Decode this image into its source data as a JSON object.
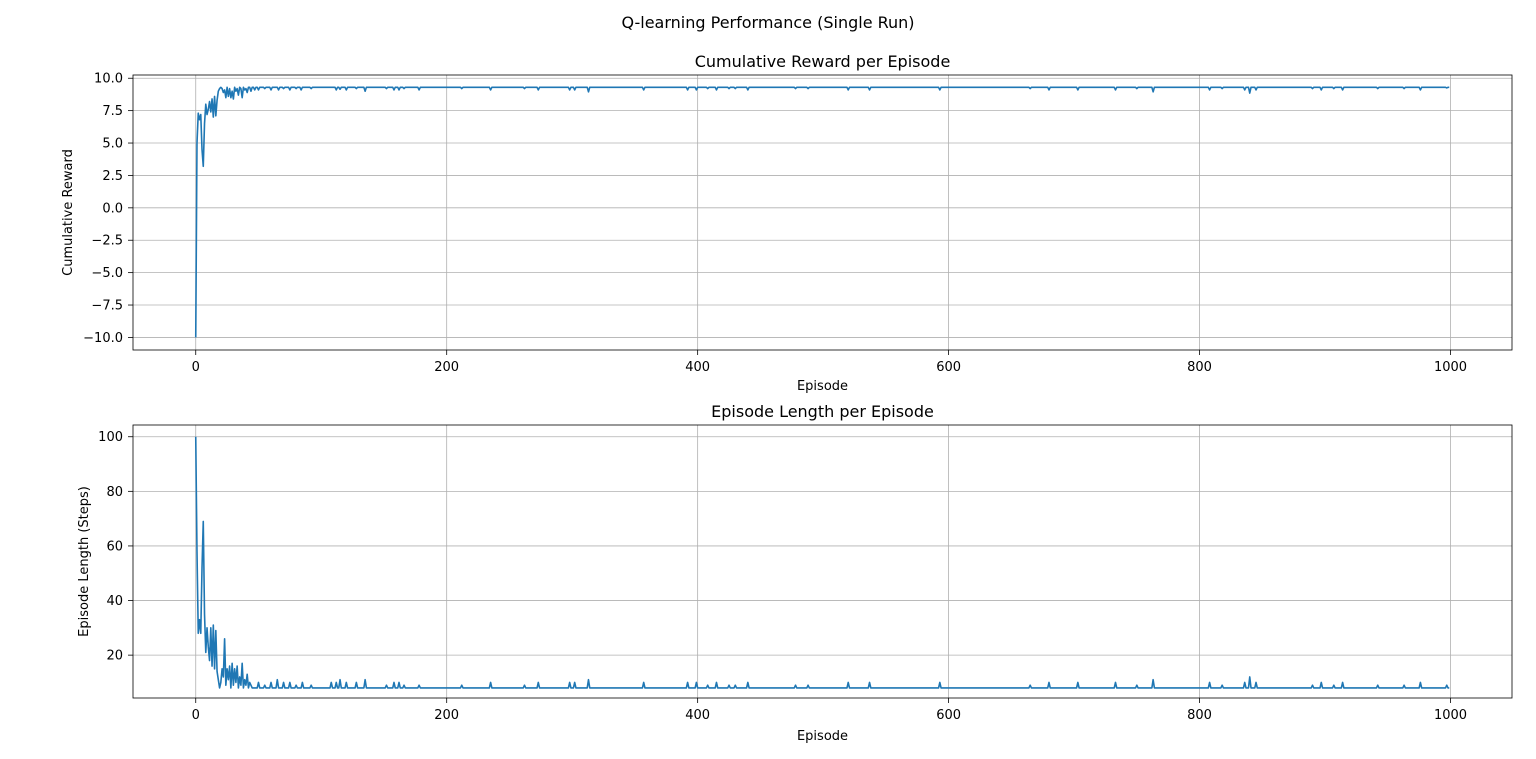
{
  "figure": {
    "suptitle": "Q-learning Performance (Single Run)"
  },
  "chart_data": [
    {
      "type": "line",
      "title": "Cumulative Reward per Episode",
      "xlabel": "Episode",
      "ylabel": "Cumulative Reward",
      "xlim": [
        -50,
        1049
      ],
      "ylim": [
        -10.97,
        10.25
      ],
      "xticks": [
        0,
        200,
        400,
        600,
        800,
        1000
      ],
      "xtick_labels": [
        "0",
        "200",
        "400",
        "600",
        "800",
        "1000"
      ],
      "yticks": [
        10.0,
        7.5,
        5.0,
        2.5,
        0.0,
        -2.5,
        -5.0,
        -7.5,
        -10.0
      ],
      "ytick_labels": [
        "10.0",
        "7.5",
        "5.0",
        "2.5",
        "0.0",
        "−2.5",
        "−5.0",
        "−7.5",
        "−10.0"
      ],
      "grid": true,
      "color": "#1f77b4",
      "series": [
        {
          "baseline": 9.3,
          "points": [
            [
              0,
              -10.0
            ],
            [
              1,
              5.0
            ],
            [
              2,
              7.3
            ],
            [
              3,
              6.8
            ],
            [
              4,
              7.2
            ],
            [
              5,
              4.5
            ],
            [
              6,
              3.2
            ],
            [
              7,
              6.5
            ],
            [
              8,
              8.0
            ],
            [
              9,
              7.2
            ],
            [
              10,
              7.6
            ],
            [
              11,
              8.2
            ],
            [
              12,
              7.4
            ],
            [
              13,
              8.4
            ],
            [
              14,
              7.0
            ],
            [
              15,
              8.6
            ],
            [
              16,
              7.1
            ],
            [
              17,
              8.3
            ],
            [
              18,
              9.0
            ],
            [
              19,
              9.2
            ],
            [
              20,
              9.3
            ],
            [
              21,
              9.2
            ],
            [
              22,
              8.9
            ],
            [
              23,
              9.1
            ],
            [
              24,
              8.5
            ],
            [
              25,
              9.3
            ],
            [
              26,
              8.6
            ],
            [
              27,
              9.2
            ],
            [
              28,
              8.5
            ],
            [
              29,
              9.0
            ],
            [
              30,
              8.4
            ],
            [
              31,
              9.3
            ],
            [
              32,
              9.0
            ],
            [
              33,
              9.2
            ],
            [
              34,
              8.7
            ],
            [
              35,
              9.3
            ],
            [
              36,
              9.2
            ],
            [
              37,
              8.5
            ],
            [
              38,
              9.3
            ],
            [
              39,
              9.1
            ],
            [
              40,
              9.2
            ],
            [
              41,
              8.9
            ],
            [
              42,
              9.3
            ],
            [
              43,
              9.3
            ],
            [
              44,
              9.0
            ],
            [
              45,
              9.3
            ],
            [
              46,
              9.3
            ],
            [
              47,
              9.1
            ]
          ],
          "dips": [
            [
              50,
              9.1
            ],
            [
              55,
              9.2
            ],
            [
              60,
              9.1
            ],
            [
              66,
              9.1
            ],
            [
              70,
              9.2
            ],
            [
              75,
              9.1
            ],
            [
              80,
              9.2
            ],
            [
              84,
              9.1
            ],
            [
              92,
              9.2
            ],
            [
              112,
              9.1
            ],
            [
              115,
              9.15
            ],
            [
              120,
              9.1
            ],
            [
              128,
              9.2
            ],
            [
              135,
              9.0
            ],
            [
              152,
              9.2
            ],
            [
              158,
              9.1
            ],
            [
              162,
              9.1
            ],
            [
              166,
              9.2
            ],
            [
              178,
              9.1
            ],
            [
              212,
              9.2
            ],
            [
              235,
              9.1
            ],
            [
              262,
              9.2
            ],
            [
              273,
              9.1
            ],
            [
              298,
              9.1
            ],
            [
              302,
              9.1
            ],
            [
              313,
              8.95
            ],
            [
              357,
              9.1
            ],
            [
              392,
              9.1
            ],
            [
              399,
              9.1
            ],
            [
              408,
              9.2
            ],
            [
              415,
              9.1
            ],
            [
              425,
              9.2
            ],
            [
              430,
              9.2
            ],
            [
              440,
              9.1
            ],
            [
              478,
              9.2
            ],
            [
              488,
              9.2
            ],
            [
              520,
              9.1
            ],
            [
              537,
              9.1
            ],
            [
              593,
              9.1
            ],
            [
              665,
              9.2
            ],
            [
              680,
              9.1
            ],
            [
              703,
              9.1
            ],
            [
              733,
              9.1
            ],
            [
              750,
              9.2
            ],
            [
              763,
              8.95
            ],
            [
              808,
              9.1
            ],
            [
              818,
              9.2
            ],
            [
              836,
              9.1
            ],
            [
              840,
              8.85
            ],
            [
              845,
              9.1
            ],
            [
              890,
              9.2
            ],
            [
              897,
              9.1
            ],
            [
              907,
              9.2
            ],
            [
              914,
              9.1
            ],
            [
              942,
              9.2
            ],
            [
              963,
              9.2
            ],
            [
              976,
              9.1
            ],
            [
              997,
              9.25
            ]
          ]
        }
      ]
    },
    {
      "type": "line",
      "title": "Episode Length per Episode",
      "xlabel": "Episode",
      "ylabel": "Episode Length (Steps)",
      "xlim": [
        -50,
        1049
      ],
      "ylim": [
        4.3,
        104.3
      ],
      "xticks": [
        0,
        200,
        400,
        600,
        800,
        1000
      ],
      "xtick_labels": [
        "0",
        "200",
        "400",
        "600",
        "800",
        "1000"
      ],
      "yticks": [
        100,
        80,
        60,
        40,
        20
      ],
      "ytick_labels": [
        "100",
        "80",
        "60",
        "40",
        "20"
      ],
      "grid": true,
      "color": "#1f77b4",
      "series": [
        {
          "baseline": 8,
          "points": [
            [
              0,
              100
            ],
            [
              1,
              58
            ],
            [
              2,
              28
            ],
            [
              3,
              33
            ],
            [
              4,
              28
            ],
            [
              5,
              52
            ],
            [
              6,
              69
            ],
            [
              7,
              35
            ],
            [
              8,
              21
            ],
            [
              9,
              30
            ],
            [
              10,
              23
            ],
            [
              11,
              18
            ],
            [
              12,
              30
            ],
            [
              13,
              16
            ],
            [
              14,
              31
            ],
            [
              15,
              15
            ],
            [
              16,
              29
            ],
            [
              17,
              14
            ],
            [
              18,
              11
            ],
            [
              19,
              8
            ],
            [
              20,
              10
            ],
            [
              21,
              15
            ],
            [
              22,
              12
            ],
            [
              23,
              26
            ],
            [
              24,
              9
            ],
            [
              25,
              15
            ],
            [
              26,
              11
            ],
            [
              27,
              16
            ],
            [
              28,
              8
            ],
            [
              29,
              17
            ],
            [
              30,
              9
            ],
            [
              31,
              15
            ],
            [
              32,
              10
            ],
            [
              33,
              16
            ],
            [
              34,
              8
            ],
            [
              35,
              12
            ],
            [
              36,
              9
            ],
            [
              37,
              17
            ],
            [
              38,
              8
            ],
            [
              39,
              11
            ],
            [
              40,
              9
            ],
            [
              41,
              13
            ],
            [
              42,
              8
            ],
            [
              43,
              10
            ],
            [
              44,
              9
            ],
            [
              45,
              8
            ]
          ],
          "dips": [
            [
              50,
              10
            ],
            [
              55,
              9
            ],
            [
              60,
              10
            ],
            [
              65,
              11
            ],
            [
              70,
              10
            ],
            [
              75,
              10
            ],
            [
              80,
              9
            ],
            [
              85,
              10
            ],
            [
              92,
              9
            ],
            [
              108,
              10
            ],
            [
              112,
              10
            ],
            [
              115,
              11
            ],
            [
              120,
              10
            ],
            [
              128,
              10
            ],
            [
              135,
              11
            ],
            [
              152,
              9
            ],
            [
              158,
              10
            ],
            [
              162,
              10
            ],
            [
              166,
              9
            ],
            [
              178,
              9
            ],
            [
              212,
              9
            ],
            [
              235,
              10
            ],
            [
              262,
              9
            ],
            [
              273,
              10
            ],
            [
              298,
              10
            ],
            [
              302,
              10
            ],
            [
              313,
              11
            ],
            [
              357,
              10
            ],
            [
              392,
              10
            ],
            [
              399,
              10
            ],
            [
              408,
              9
            ],
            [
              415,
              10
            ],
            [
              425,
              9
            ],
            [
              430,
              9
            ],
            [
              440,
              10
            ],
            [
              478,
              9
            ],
            [
              488,
              9
            ],
            [
              520,
              10
            ],
            [
              537,
              10
            ],
            [
              593,
              10
            ],
            [
              665,
              9
            ],
            [
              680,
              10
            ],
            [
              703,
              10
            ],
            [
              733,
              10
            ],
            [
              750,
              9
            ],
            [
              763,
              11
            ],
            [
              808,
              10
            ],
            [
              818,
              9
            ],
            [
              836,
              10
            ],
            [
              840,
              12
            ],
            [
              845,
              10
            ],
            [
              890,
              9
            ],
            [
              897,
              10
            ],
            [
              907,
              9
            ],
            [
              914,
              10
            ],
            [
              942,
              9
            ],
            [
              963,
              9
            ],
            [
              976,
              10
            ],
            [
              997,
              9
            ]
          ]
        }
      ]
    }
  ]
}
